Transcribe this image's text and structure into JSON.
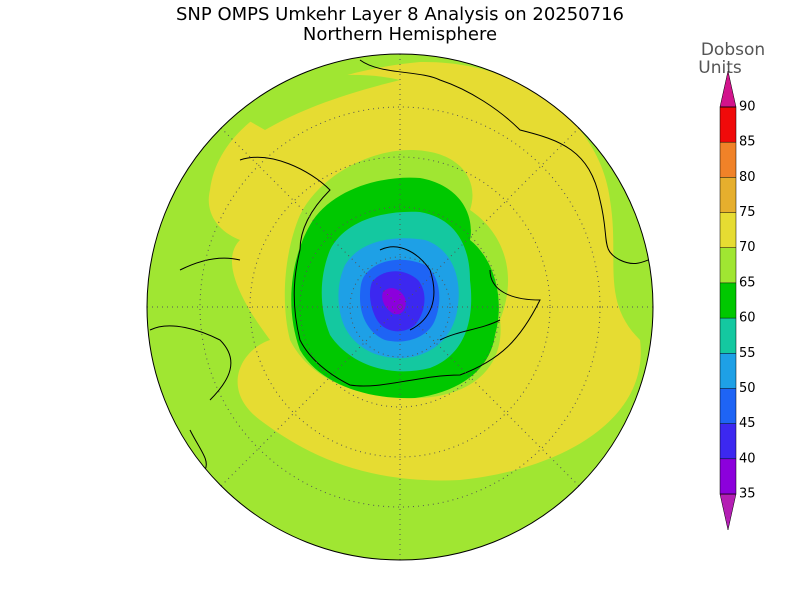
{
  "header": {
    "title": "SNP OMPS Umkehr Layer 8 Analysis on 20250716",
    "subtitle": "Northern Hemisphere"
  },
  "colorbar": {
    "label": [
      "Dobson",
      "Units"
    ],
    "ticks": [
      35,
      40,
      45,
      50,
      55,
      60,
      65,
      70,
      75,
      80,
      85,
      90
    ],
    "colors": [
      "#b41eb4",
      "#8c00dc",
      "#3c28f0",
      "#1e64f5",
      "#1ea0e6",
      "#14c8a0",
      "#00c800",
      "#a0e632",
      "#e6dc32",
      "#e6af2d",
      "#f08228",
      "#f00a0a",
      "#d2148c"
    ]
  }
}
